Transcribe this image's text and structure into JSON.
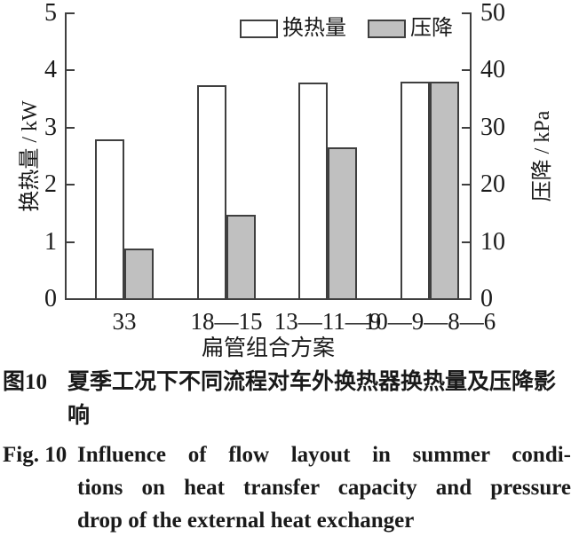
{
  "chart_data": {
    "type": "bar",
    "title": "",
    "categories": [
      "33",
      "18—15",
      "13—11—9",
      "10—9—8—6"
    ],
    "series": [
      {
        "name": "换热量",
        "unit": "kW",
        "axis": "left",
        "fill": "#ffffff",
        "values": [
          2.78,
          3.73,
          3.77,
          3.79
        ]
      },
      {
        "name": "压降",
        "unit": "kPa",
        "axis": "right",
        "fill": "#c0c0c0",
        "values": [
          8.7,
          14.6,
          26.4,
          37.9
        ]
      }
    ],
    "xlabel": "扁管组合方案",
    "ylabel_left": "换热量 / kW",
    "ylabel_right": "压降 / kPa",
    "ylim_left": [
      0,
      5
    ],
    "ylim_right": [
      0,
      50
    ],
    "yticks_left": [
      0,
      1,
      2,
      3,
      4,
      5
    ],
    "yticks_right": [
      0,
      10,
      20,
      30,
      40,
      50
    ],
    "grid": false,
    "legend_position": "top-inside",
    "bar_edge_color": "#3f3f3f",
    "axis_color": "#3f3f3f"
  },
  "caption_zh": {
    "label": "图10",
    "lines": [
      "夏季工况下不同流程对车外换热器换热量及压降影",
      "响"
    ],
    "text": "夏季工况下不同流程对车外换热器换热量及压降影响"
  },
  "caption_en": {
    "label": "Fig. 10",
    "lines": [
      "Influence of flow layout in summer condi-",
      "tions on heat transfer capacity and pressure",
      "drop of the external heat exchanger"
    ],
    "text": "Influence of flow layout in summer conditions on heat transfer capacity and pressure drop of the external heat exchanger"
  }
}
